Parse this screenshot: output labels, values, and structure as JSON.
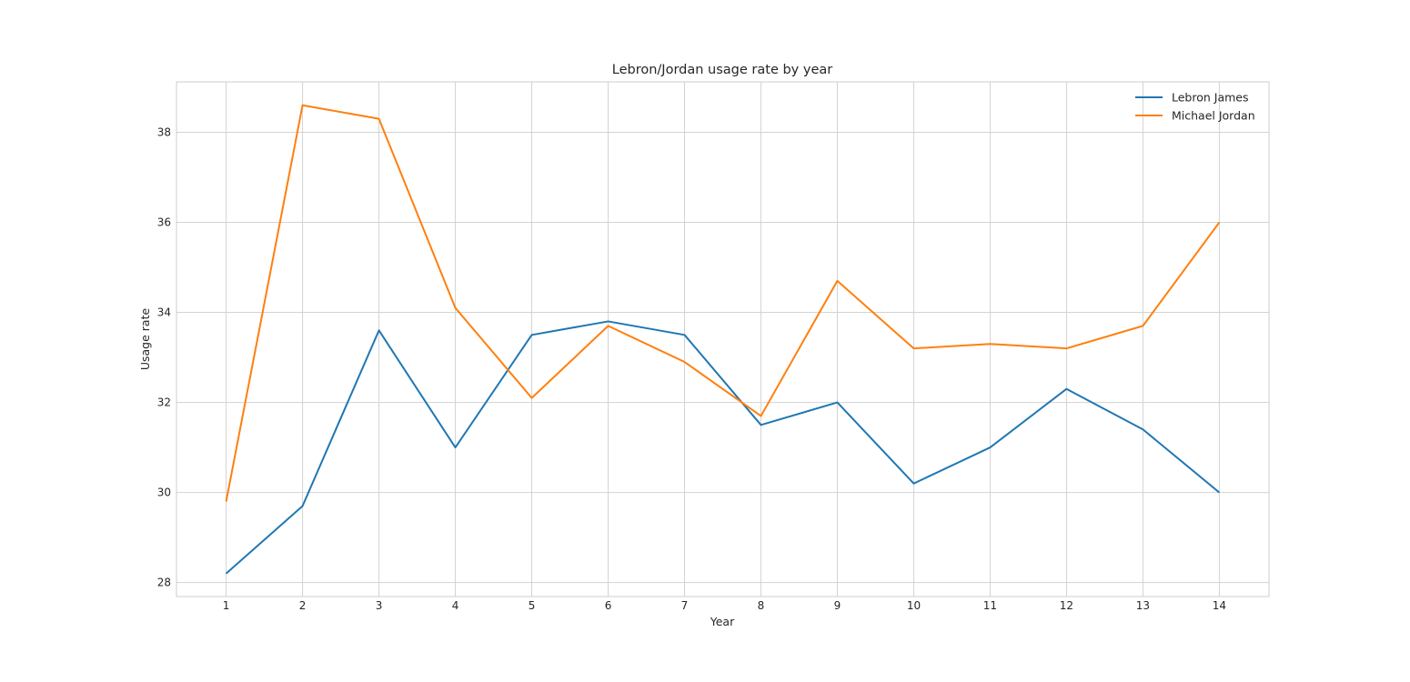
{
  "chart_data": {
    "type": "line",
    "title": "Lebron/Jordan usage rate by year",
    "xlabel": "Year",
    "ylabel": "Usage rate",
    "x": [
      1,
      2,
      3,
      4,
      5,
      6,
      7,
      8,
      9,
      10,
      11,
      12,
      13,
      14
    ],
    "xticks": [
      "1",
      "2",
      "3",
      "4",
      "5",
      "6",
      "7",
      "8",
      "9",
      "10",
      "11",
      "12",
      "13",
      "14"
    ],
    "yticks": [
      28,
      30,
      32,
      34,
      36,
      38
    ],
    "xlim": [
      0.35,
      14.65
    ],
    "ylim": [
      27.69,
      39.12
    ],
    "grid": true,
    "legend_position": "top-right",
    "series": [
      {
        "name": "Lebron James",
        "color": "#1f77b4",
        "values": [
          28.2,
          29.7,
          33.6,
          31.0,
          33.5,
          33.8,
          33.5,
          31.5,
          32.0,
          30.2,
          31.0,
          32.3,
          31.4,
          30.0
        ]
      },
      {
        "name": "Michael Jordan",
        "color": "#ff7f0e",
        "values": [
          29.8,
          38.6,
          38.3,
          34.1,
          32.1,
          33.7,
          32.9,
          31.7,
          34.7,
          33.2,
          33.3,
          33.2,
          33.7,
          36.0
        ]
      }
    ]
  }
}
